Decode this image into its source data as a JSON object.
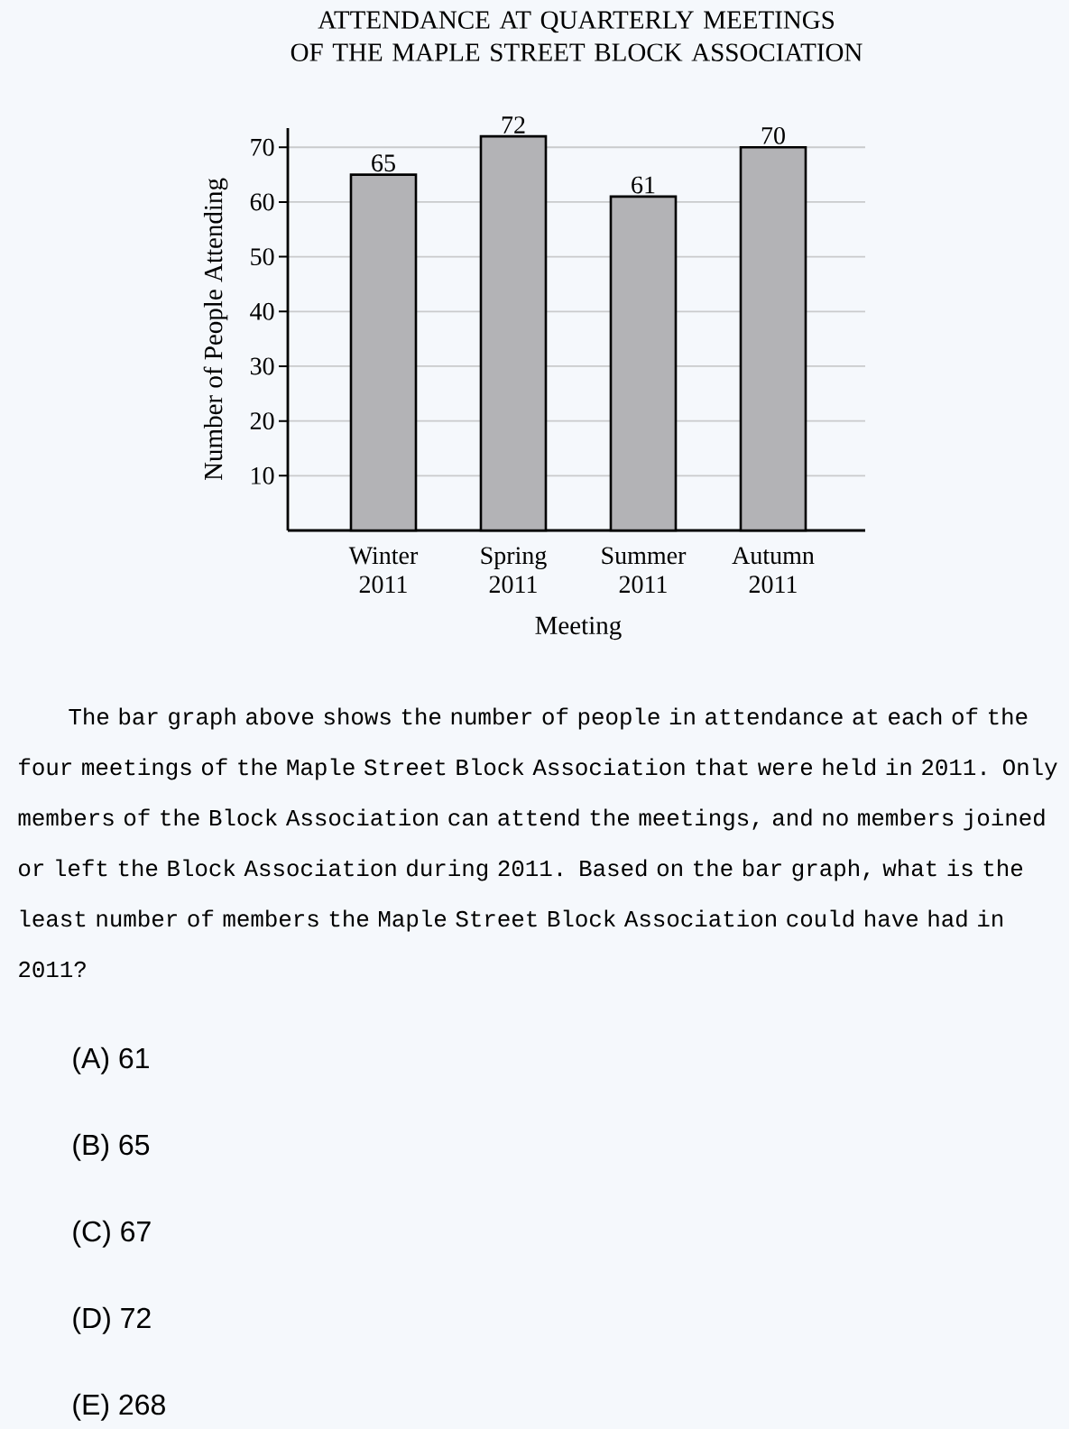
{
  "chart_data": {
    "type": "bar",
    "title": "ATTENDANCE AT QUARTERLY MEETINGS OF THE MAPLE STREET BLOCK ASSOCIATION",
    "xlabel": "Meeting",
    "ylabel": "Number of People Attending",
    "categories": [
      "Winter 2011",
      "Spring 2011",
      "Summer 2011",
      "Autumn 2011"
    ],
    "values": [
      65,
      72,
      61,
      70
    ],
    "color": "#b3b3b6",
    "ylim": [
      0,
      73.5
    ],
    "yticks": [
      10,
      20,
      30,
      40,
      50,
      60,
      70
    ],
    "grid": "y",
    "data_labels": true,
    "annotations": [
      "The bar graph above shows the number of people in attendance at each of the four meetings of the Maple Street Block Association that were held in 2011. Only members of the Block Association can attend the meetings, and no members joined or left the Block Association during 2011. Based on the bar graph, what is the least number of members the Maple Street Block Association could have had in 2011?",
      "(A) 61",
      "(B) 65",
      "(C) 67",
      "(D) 72",
      "(E) 268"
    ]
  }
}
